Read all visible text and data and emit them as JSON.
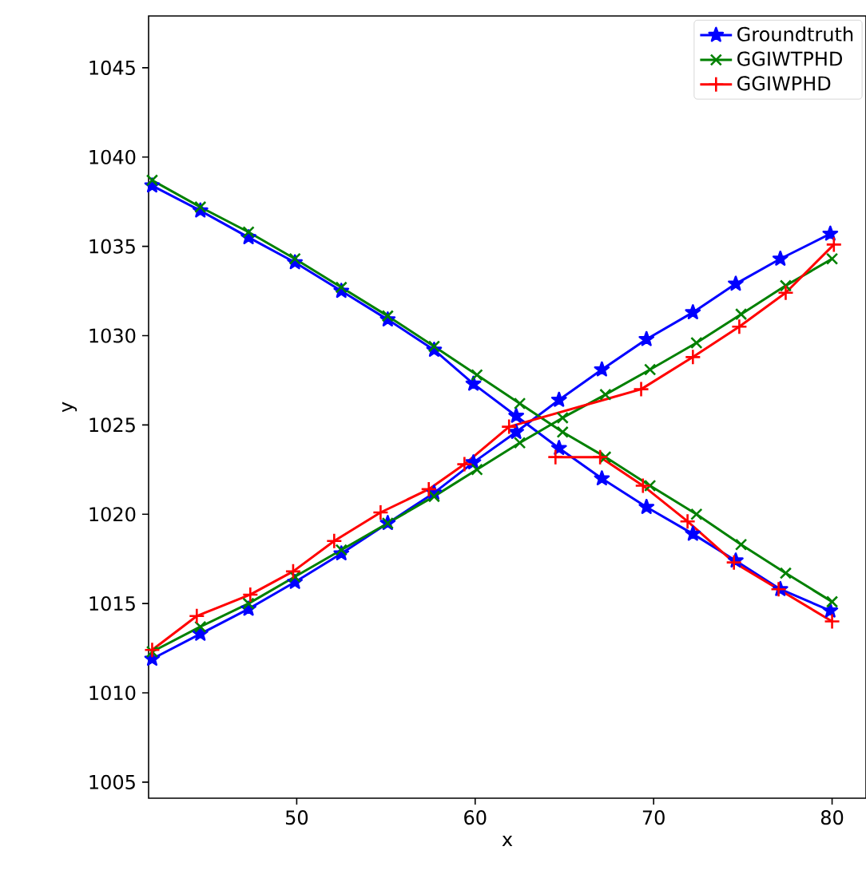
{
  "chart_data": {
    "type": "line",
    "xlabel": "x",
    "ylabel": "y",
    "xlim": [
      41.7,
      81.9
    ],
    "ylim": [
      1004.1,
      1047.9
    ],
    "xticks": [
      50,
      60,
      70,
      80
    ],
    "yticks": [
      1005,
      1010,
      1015,
      1020,
      1025,
      1030,
      1035,
      1040,
      1045
    ],
    "legend": "top right",
    "grid": false,
    "line_style": "solid",
    "series": [
      {
        "name": "Groundtruth",
        "color": "#0000ff",
        "marker": "star",
        "x": [
          41.9,
          44.6,
          47.3,
          49.9,
          52.5,
          55.1,
          57.7,
          59.9,
          62.3,
          64.7,
          67.1,
          69.6,
          72.2,
          74.6,
          77.1,
          79.9
        ],
        "values": [
          1038.4,
          1037.0,
          1035.5,
          1034.1,
          1032.5,
          1030.9,
          1029.2,
          1027.3,
          1025.5,
          1023.7,
          1022.0,
          1020.4,
          1018.9,
          1017.4,
          1015.8,
          1014.6
        ]
      },
      {
        "color": "#0000ff",
        "marker": "star",
        "x": [
          41.9,
          44.6,
          47.3,
          49.9,
          52.5,
          55.1,
          57.7,
          59.9,
          62.3,
          64.7,
          67.1,
          69.6,
          72.2,
          74.6,
          77.1,
          79.9
        ],
        "values": [
          1011.9,
          1013.3,
          1014.7,
          1016.2,
          1017.8,
          1019.5,
          1021.2,
          1022.9,
          1024.6,
          1026.4,
          1028.1,
          1029.8,
          1031.3,
          1032.9,
          1034.3,
          1035.7
        ]
      },
      {
        "name": "GGIWTPHD",
        "color": "#008000",
        "marker": "x",
        "x": [
          41.9,
          44.6,
          47.3,
          49.9,
          52.5,
          55.1,
          57.7,
          60.1,
          62.5,
          64.9,
          67.3,
          69.8,
          72.4,
          74.9,
          77.4,
          80.0
        ],
        "values": [
          1038.7,
          1037.2,
          1035.8,
          1034.3,
          1032.7,
          1031.1,
          1029.4,
          1027.8,
          1026.2,
          1024.6,
          1023.2,
          1021.6,
          1020.0,
          1018.3,
          1016.7,
          1015.1
        ]
      },
      {
        "color": "#008000",
        "marker": "x",
        "x": [
          41.9,
          44.6,
          47.3,
          49.9,
          52.5,
          55.1,
          57.7,
          60.1,
          62.5,
          64.9,
          67.3,
          69.8,
          72.4,
          74.9,
          77.4,
          80.0
        ],
        "values": [
          1012.3,
          1013.7,
          1015.0,
          1016.5,
          1018.0,
          1019.5,
          1021.0,
          1022.5,
          1024.0,
          1025.4,
          1026.7,
          1028.1,
          1029.6,
          1031.2,
          1032.8,
          1034.3
        ]
      },
      {
        "name": "GGIWPHD",
        "color": "#ff0000",
        "marker": "cross",
        "x": [
          41.9,
          44.4,
          47.4,
          49.8,
          52.1,
          54.7,
          57.4,
          59.4,
          61.9,
          69.3,
          72.2,
          74.8,
          77.4,
          80.1
        ],
        "values": [
          1012.4,
          1014.3,
          1015.5,
          1016.8,
          1018.5,
          1020.1,
          1021.4,
          1022.8,
          1024.9,
          1027.0,
          1028.8,
          1030.5,
          1032.4,
          1035.1
        ]
      },
      {
        "color": "#ff0000",
        "marker": "cross",
        "x": [
          64.5,
          67.0,
          69.4,
          71.9,
          74.5,
          77.0,
          80.0
        ],
        "values": [
          1023.2,
          1023.2,
          1021.6,
          1019.6,
          1017.3,
          1015.8,
          1014.0
        ]
      }
    ]
  }
}
